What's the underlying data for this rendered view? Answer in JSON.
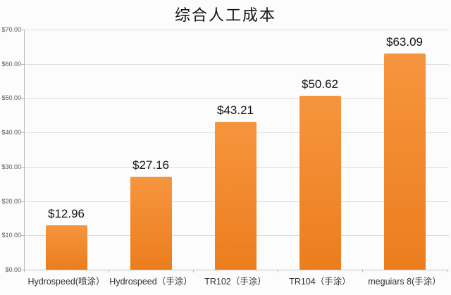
{
  "chart_data": {
    "type": "bar",
    "title": "综合人工成本",
    "categories": [
      "Hydrospeed(喷涂）",
      "Hydrospeed（手涂）",
      "TR102（手涂）",
      "TR104（手涂）",
      "meguiars 8(手涂）"
    ],
    "values": [
      12.96,
      27.16,
      43.21,
      50.62,
      63.09
    ],
    "data_labels": [
      "$12.96",
      "$27.16",
      "$43.21",
      "$50.62",
      "$63.09"
    ],
    "yticks": [
      "$0.00",
      "$10.00",
      "$20.00",
      "$30.00",
      "$40.00",
      "$50.00",
      "$60.00",
      "$70.00"
    ],
    "ytick_step": 10,
    "ylim": [
      0,
      70
    ],
    "xlabel": "",
    "ylabel": "",
    "grid": true,
    "legend_position": "none",
    "colors": {
      "bar_top": "#F6953E",
      "bar_bottom": "#EC7D1E",
      "gridline": "#dedede",
      "baseline": "#c2c2c2",
      "axis": "#b8b8b8",
      "y_label": "#595959",
      "x_label": "#303030",
      "value_label": "#141414",
      "title": "#141414",
      "background": "#fcfcfc"
    }
  }
}
